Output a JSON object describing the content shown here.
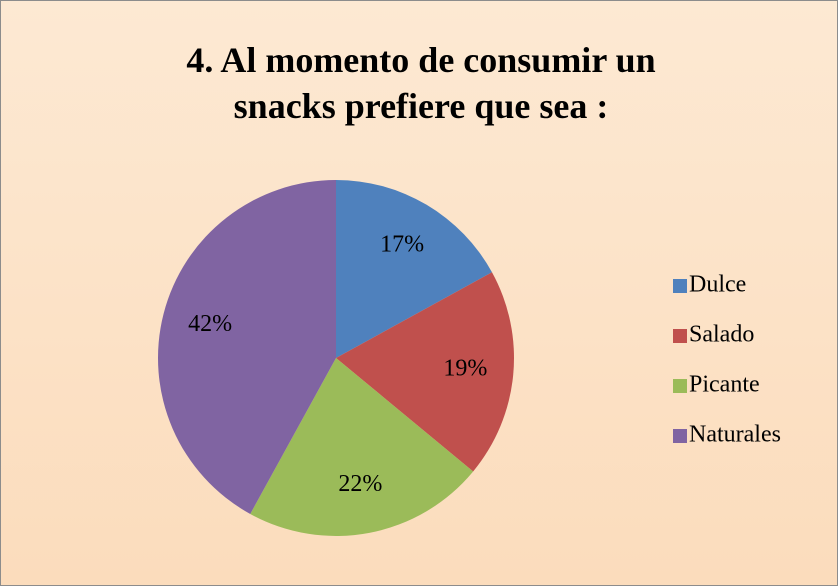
{
  "chart_data": {
    "type": "pie",
    "title": "4. Al momento de consumir un snacks prefiere que sea :",
    "categories": [
      "Dulce",
      "Salado",
      "Picante",
      "Naturales"
    ],
    "values": [
      17,
      19,
      22,
      42
    ],
    "value_labels": [
      "17%",
      "19%",
      "22%",
      "42%"
    ],
    "colors": [
      "#4f81bd",
      "#c0504d",
      "#9bbb59",
      "#8064a2"
    ],
    "legend": "right"
  }
}
